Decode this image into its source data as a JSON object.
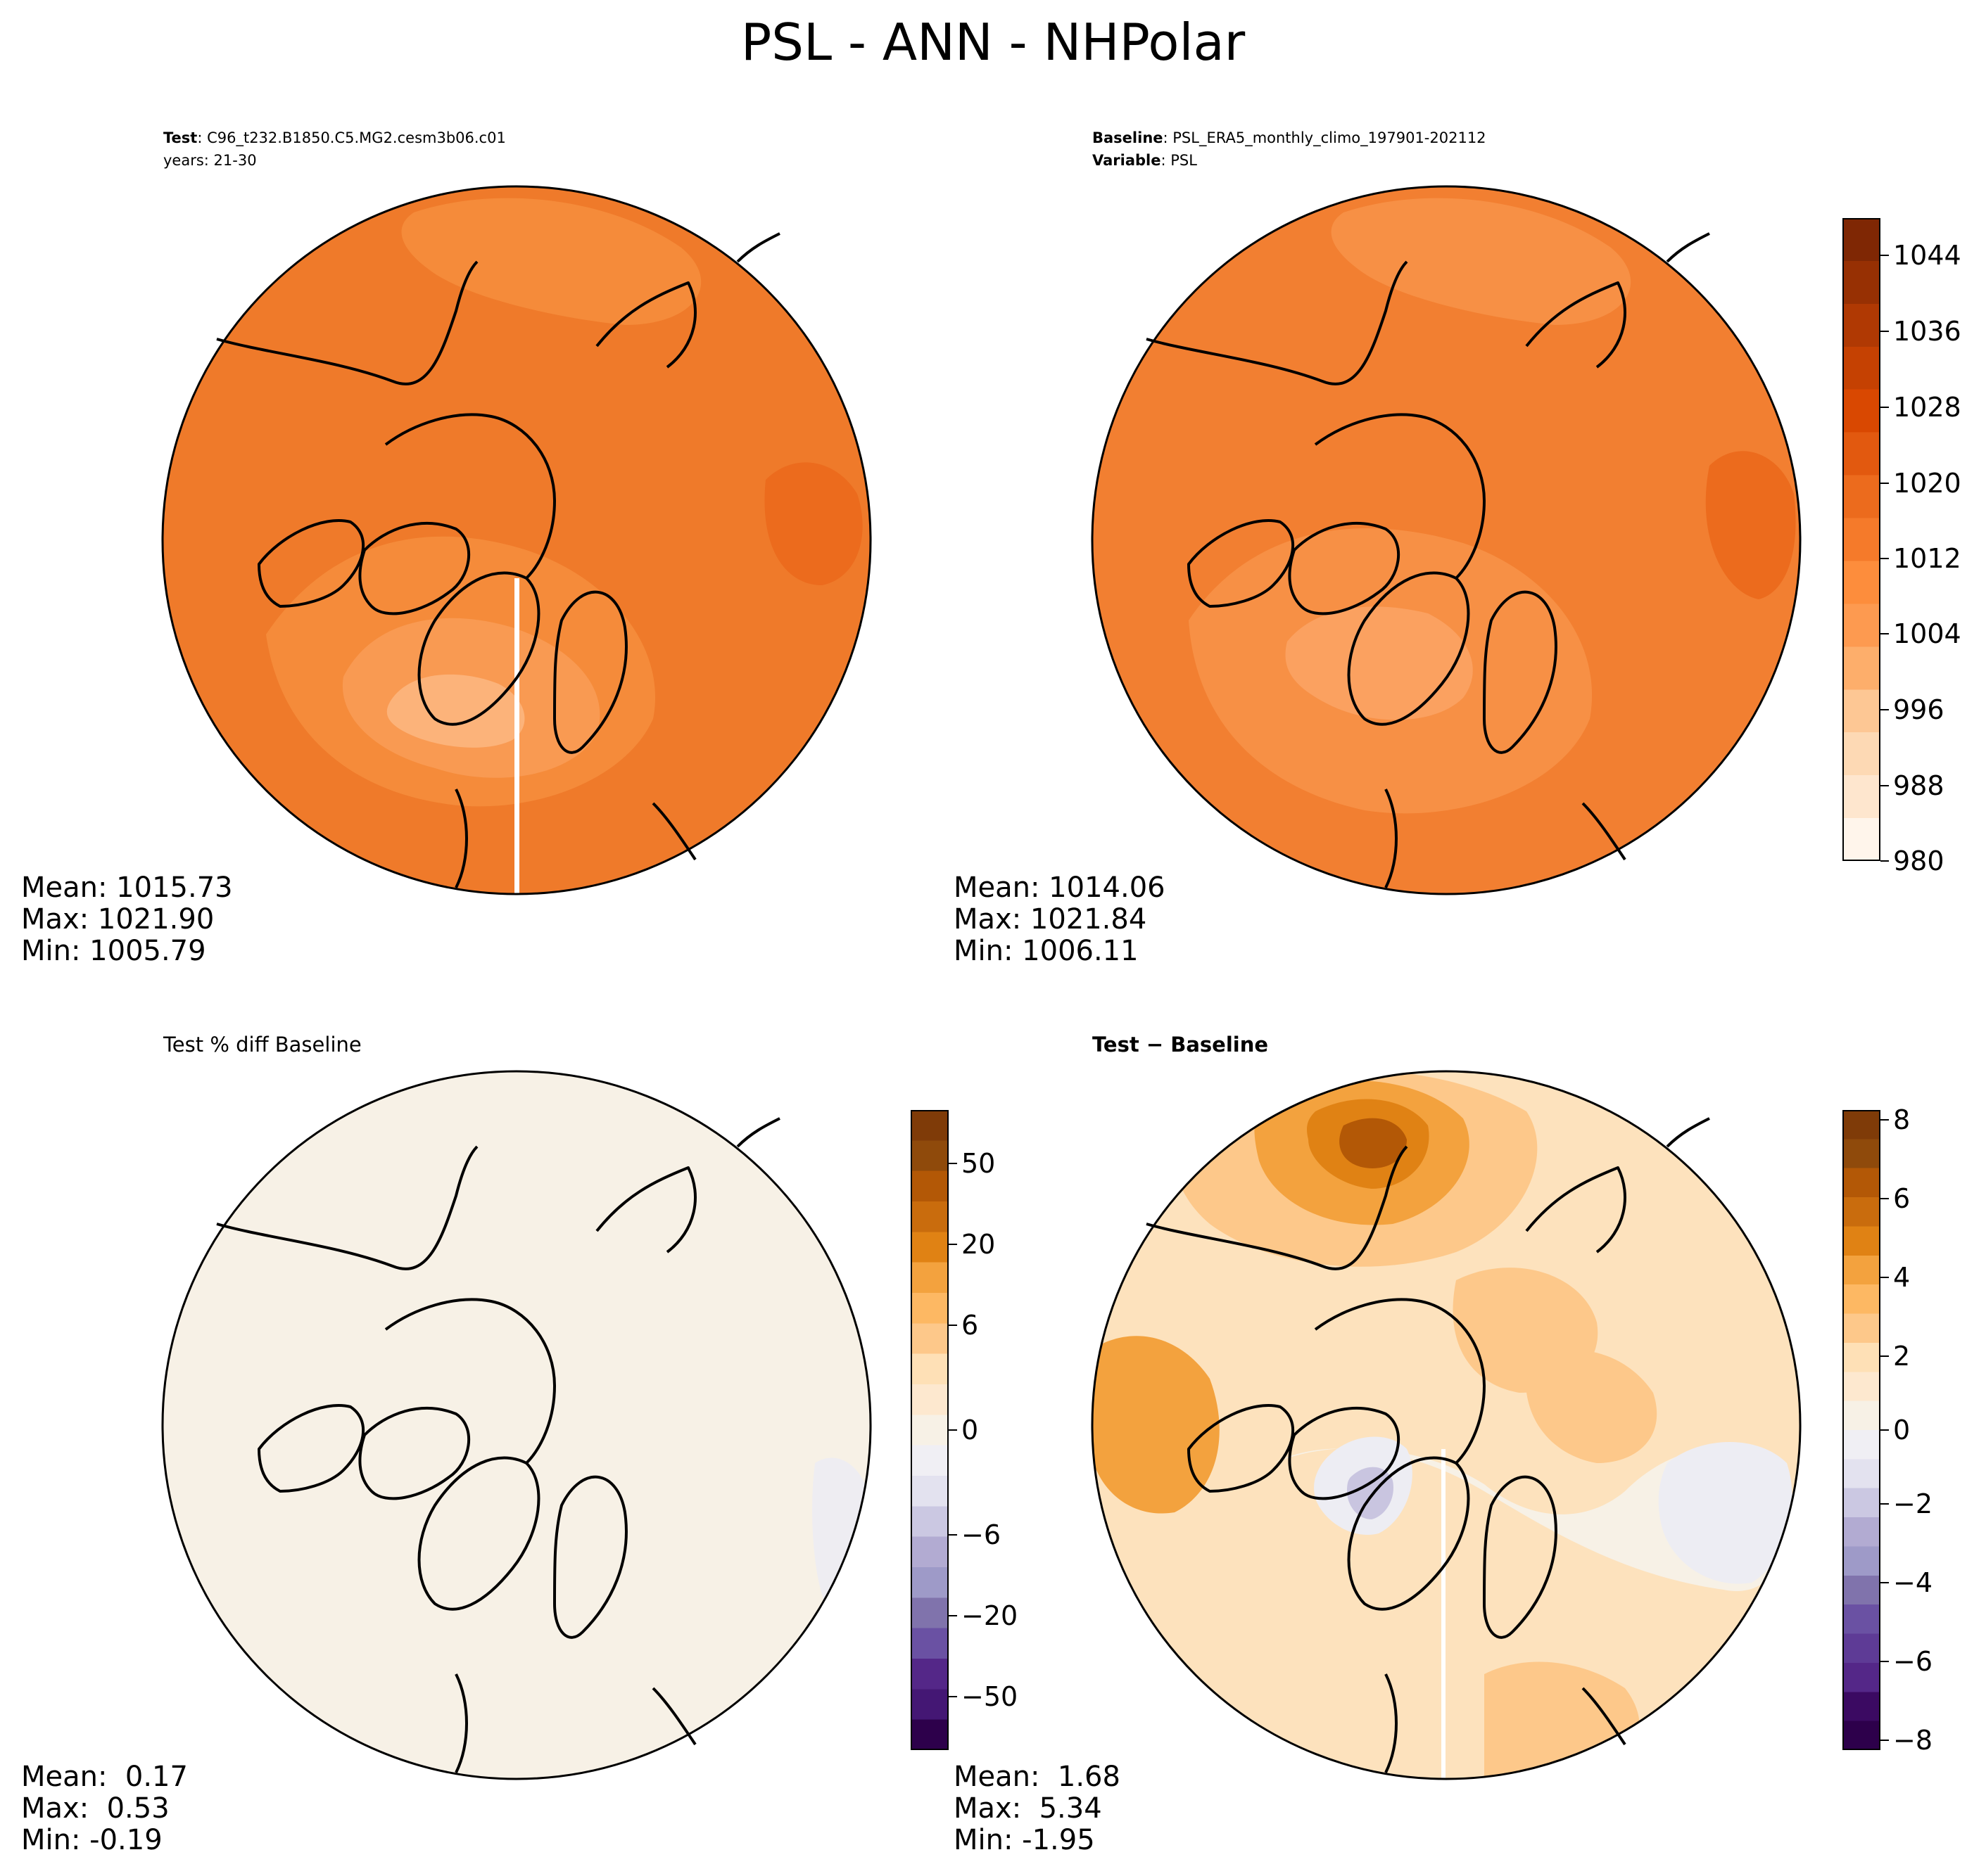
{
  "title": "PSL - ANN - NHPolar",
  "panels": {
    "test": {
      "label_key": "Test",
      "label_value": ": C96_t232.B1850.C5.MG2.cesm3b06.c01",
      "years": "years: 21-30",
      "mean": "Mean: 1015.73",
      "max": "Max: 1021.90",
      "min": "Min: 1005.79"
    },
    "baseline": {
      "label_key": "Baseline",
      "label_value": ": PSL_ERA5_monthly_climo_197901-202112",
      "var_key": "Variable",
      "var_value": ": PSL",
      "mean": "Mean: 1014.06",
      "max": "Max: 1021.84",
      "min": "Min: 1006.11"
    },
    "pct": {
      "subtitle": "Test % diff Baseline",
      "mean": "Mean:  0.17",
      "max": "Max:  0.53",
      "min": "Min: -0.19"
    },
    "diff": {
      "subtitle": "Test − Baseline",
      "mean": "Mean:  1.68",
      "max": "Max:  5.34",
      "min": "Min: -1.95"
    }
  },
  "colorbars": {
    "main": {
      "ticks": [
        "1044",
        "1036",
        "1028",
        "1020",
        "1012",
        "1004",
        "996",
        "988",
        "980"
      ],
      "colors_low_to_high": [
        "#fff5eb",
        "#fee6ce",
        "#fdd9b4",
        "#fdc794",
        "#fdae6b",
        "#fd9a50",
        "#fd8d3c",
        "#f57a2a",
        "#ec6b1d",
        "#e2590f",
        "#d94801",
        "#c54102",
        "#b03903",
        "#973003",
        "#7f2704"
      ]
    },
    "pct": {
      "ticks": [
        "50",
        "20",
        "6",
        "0",
        "−6",
        "−20",
        "−50"
      ],
      "colors_low_to_high": [
        "#2d004b",
        "#441774",
        "#542788",
        "#6a51a3",
        "#8073ac",
        "#9e9ac8",
        "#b2abd2",
        "#cbc8e2",
        "#e3e2ef",
        "#f0eff4",
        "#f7f1e6",
        "#fde8cf",
        "#fee0b6",
        "#fdc88a",
        "#fdb863",
        "#f3a23e",
        "#e08214",
        "#c96c0d",
        "#b35806",
        "#8f4a0b",
        "#7f3b08"
      ]
    },
    "diff": {
      "ticks": [
        "8",
        "6",
        "4",
        "2",
        "0",
        "−2",
        "−4",
        "−6",
        "−8"
      ],
      "colors_low_to_high": [
        "#2d004b",
        "#3b0a62",
        "#542788",
        "#5e3b96",
        "#6a51a3",
        "#8073ac",
        "#9e9ac8",
        "#b2abd2",
        "#cbc8e2",
        "#e3e2ef",
        "#f0eff4",
        "#f7f1e6",
        "#fde8cf",
        "#fee0b6",
        "#fdc88a",
        "#fdb863",
        "#f3a23e",
        "#e08214",
        "#c96c0d",
        "#b35806",
        "#8f4a0b",
        "#7f3b08"
      ]
    }
  },
  "map_fills": {
    "test": [
      "#ef7a2a",
      "#f58b3a",
      "#f99a52",
      "#fcb37a",
      "#ec6b1d"
    ],
    "baseline": [
      "#f27f31",
      "#f79045",
      "#fba160",
      "#ec6b1d"
    ],
    "pct": [
      "#f7f1e6",
      "#f9f2e8",
      "#eeedf2"
    ],
    "diff": [
      "#fde2bd",
      "#fdc88a",
      "#f3a23e",
      "#e08214",
      "#b35806",
      "#ededf3",
      "#c9c5e0",
      "#f7f1e6"
    ]
  }
}
